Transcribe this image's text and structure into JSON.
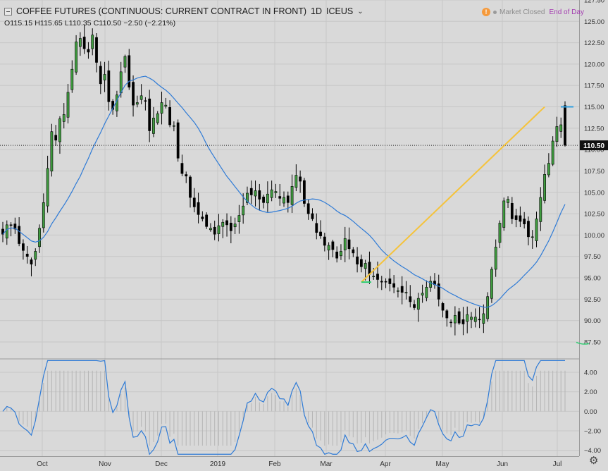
{
  "header": {
    "title": "COFFEE FUTURES (CONTINUOUS: CURRENT CONTRACT IN FRONT)",
    "interval": "1D",
    "exchange": "ICEUS",
    "ohlc": "O115.15  H115.65  L110.35  C110.50  −2.50 (−2.21%)"
  },
  "status": {
    "info_icon": "!",
    "market": "Market Closed",
    "eod": "End of Day",
    "colors": {
      "info": "#f59a3c",
      "eod": "#a33bb0"
    }
  },
  "chart_data": {
    "type": "candlestick",
    "price_axis": {
      "range": [
        85.6,
        127.5
      ],
      "ticks": [
        "127.50",
        "125.00",
        "122.50",
        "120.00",
        "117.50",
        "115.00",
        "112.50",
        "110.00",
        "107.50",
        "105.00",
        "102.50",
        "100.00",
        "97.50",
        "95.00",
        "92.50",
        "90.00",
        "87.50"
      ]
    },
    "last_price": 110.5,
    "last_price_label": "110.50",
    "time_axis": {
      "labels": [
        "Oct",
        "Nov",
        "Dec",
        "2019",
        "Feb",
        "Mar",
        "Apr",
        "May",
        "Jun",
        "Jul"
      ]
    },
    "closes": [
      100.1,
      101.2,
      101.2,
      100.7,
      99.0,
      98.2,
      97.5,
      96.6,
      98.1,
      100.8,
      103.8,
      107.8,
      112.1,
      111.1,
      113.6,
      114.1,
      116.7,
      119.4,
      122.6,
      123.0,
      121.8,
      121.4,
      123.4,
      120.2,
      117.7,
      118.8,
      115.6,
      114.7,
      116.4,
      119.1,
      120.9,
      117.3,
      115.2,
      115.5,
      116.3,
      115.7,
      112.2,
      113.7,
      114.2,
      115.5,
      115.2,
      112.9,
      112.8,
      109.0,
      107.2,
      106.9,
      104.4,
      103.3,
      102.4,
      101.9,
      101.0,
      100.8,
      100.1,
      101.1,
      101.5,
      101.2,
      100.5,
      101.3,
      102.3,
      103.4,
      104.9,
      104.7,
      105.2,
      104.2,
      103.8,
      104.8,
      105.3,
      105.1,
      104.3,
      104.4,
      103.8,
      105.7,
      107.0,
      106.3,
      103.7,
      102.5,
      101.9,
      100.3,
      99.9,
      98.8,
      98.8,
      98.3,
      97.3,
      98.1,
      99.6,
      98.4,
      97.9,
      96.6,
      96.3,
      96.7,
      95.4,
      95.2,
      94.8,
      94.5,
      94.5,
      94.3,
      93.9,
      93.5,
      93.3,
      93.3,
      92.2,
      91.5,
      92.6,
      93.2,
      93.9,
      94.6,
      94.2,
      92.5,
      91.2,
      90.3,
      89.8,
      90.6,
      89.7,
      89.6,
      90.7,
      90.4,
      90.4,
      90.1,
      90.8,
      92.8,
      96.0,
      98.6,
      101.4,
      104.0,
      104.2,
      101.9,
      101.8,
      101.6,
      101.3,
      99.8,
      99.8,
      101.9,
      104.4,
      107.1,
      108.4,
      111.0,
      112.7,
      112.9,
      110.5
    ],
    "ma_period": 20,
    "ma_color": "#2f7bd6",
    "trend_line": {
      "from": 94.5,
      "to": 115.0,
      "color": "#f5c33b"
    },
    "markers": [
      {
        "price": 94.5,
        "color": "#2ecc71"
      },
      {
        "price": 115.0,
        "color": "#2f9fe0"
      },
      {
        "price": 87.3,
        "color": "#2ecc71"
      }
    ],
    "oscillator": {
      "ticks": [
        "4.00",
        "2.00",
        "0.00",
        "−2.00",
        "−4.00"
      ],
      "range": [
        -4.6,
        5.3
      ],
      "line_color": "#2f7bd6"
    },
    "grid": true
  }
}
